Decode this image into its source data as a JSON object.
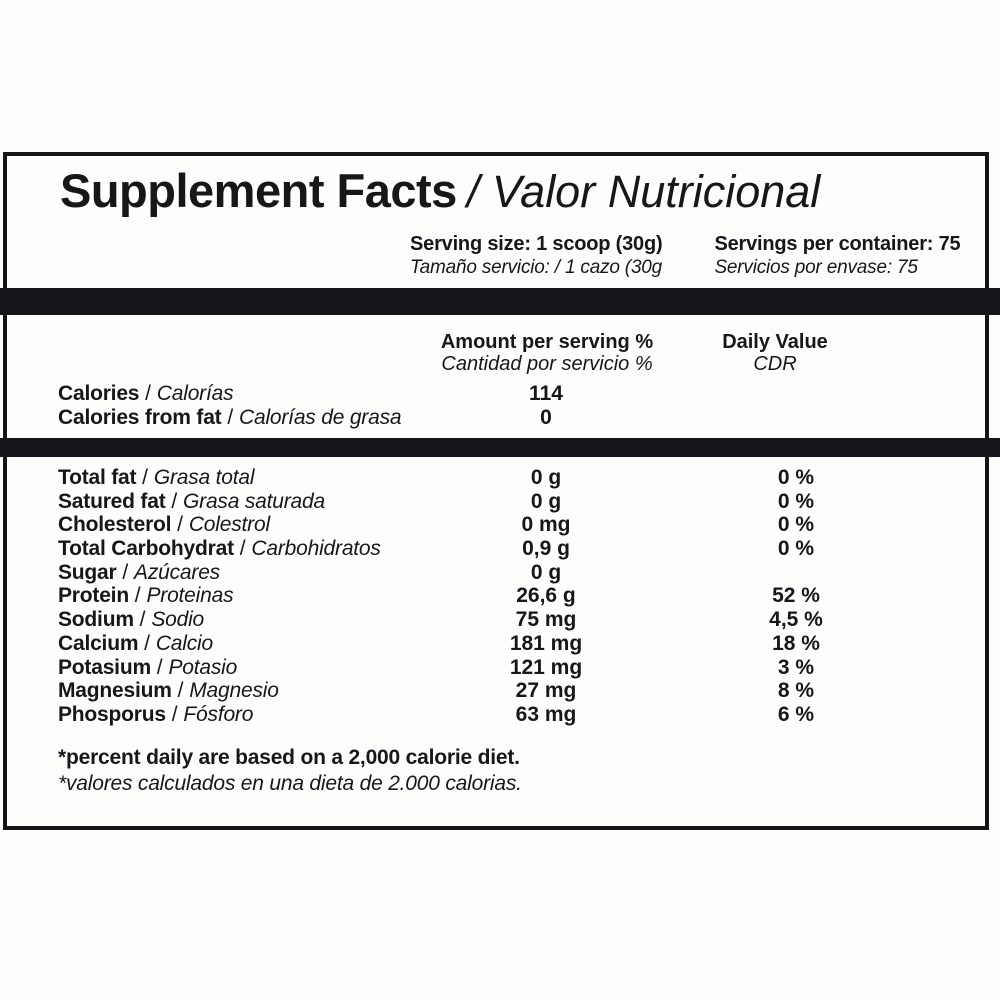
{
  "label": {
    "sep": " / ",
    "title": {
      "en": "Supplement Facts",
      "es": "/ Valor Nutricional"
    },
    "serving": {
      "size_en": "Serving size: 1 scoop (30g)",
      "size_es": "Tamaño servicio: / 1 cazo (30g",
      "container_en": "Servings per container: 75",
      "container_es": "Servicios por envase: 75"
    },
    "columns": {
      "amount_en": "Amount per serving %",
      "amount_es": "Cantidad por servicio %",
      "dv_en": "Daily Value",
      "dv_es": "CDR"
    },
    "calories_rows": [
      {
        "en": "Calories",
        "es": "Calorías",
        "amount": "114"
      },
      {
        "en": "Calories from fat",
        "es": "Calorías de grasa",
        "amount": "0"
      }
    ],
    "nutrient_rows": [
      {
        "en": "Total fat",
        "es": "Grasa total",
        "amount": "0 g",
        "dv": "0 %"
      },
      {
        "en": "Satured fat",
        "es": "Grasa saturada",
        "amount": "0 g",
        "dv": "0 %"
      },
      {
        "en": "Cholesterol",
        "es": "Colestrol",
        "amount": "0 mg",
        "dv": "0 %"
      },
      {
        "en": "Total Carbohydrat",
        "es": "Carbohidratos",
        "amount": "0,9 g",
        "dv": "0 %"
      },
      {
        "en": "Sugar",
        "es": "Azúcares",
        "amount": "0 g",
        "dv": ""
      },
      {
        "en": "Protein",
        "es": "Proteinas",
        "amount": "26,6 g",
        "dv": "52 %"
      },
      {
        "en": "Sodium",
        "es": "Sodio",
        "amount": "75 mg",
        "dv": "4,5 %"
      },
      {
        "en": "Calcium",
        "es": "Calcio",
        "amount": "181 mg",
        "dv": "18 %"
      },
      {
        "en": "Potasium",
        "es": "Potasio",
        "amount": "121 mg",
        "dv": "3 %"
      },
      {
        "en": "Magnesium",
        "es": "Magnesio",
        "amount": "27 mg",
        "dv": "8 %"
      },
      {
        "en": "Phosporus",
        "es": "Fósforo",
        "amount": "63 mg",
        "dv": "6 %"
      }
    ],
    "footnote": {
      "en": "*percent daily are based on a 2,000 calorie diet.",
      "es": "*valores calculados en una dieta de 2.000 calorias."
    },
    "colors": {
      "bar": "#14141b",
      "border": "#161616",
      "text": "#17171a"
    }
  }
}
